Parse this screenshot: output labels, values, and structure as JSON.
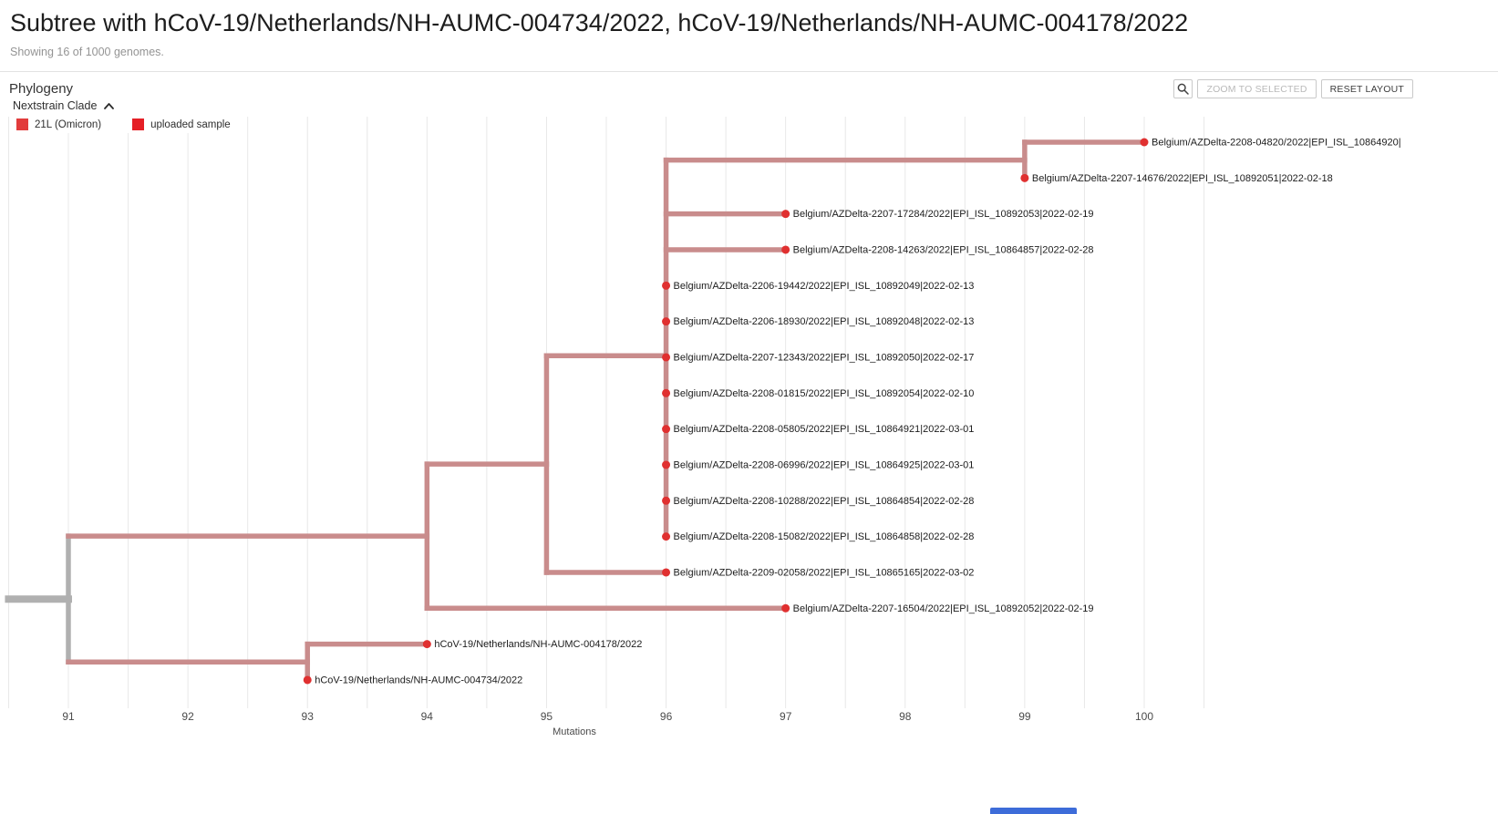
{
  "header": {
    "title": "Subtree with hCoV-19/Netherlands/NH-AUMC-004734/2022, hCoV-19/Netherlands/NH-AUMC-004178/2022",
    "subtitle": "Showing 16 of 1000 genomes."
  },
  "panel": {
    "title": "Phylogeny",
    "zoom_to_selected_label": "ZOOM TO SELECTED",
    "reset_layout_label": "RESET LAYOUT"
  },
  "legend": {
    "title": "Nextstrain Clade",
    "items": [
      {
        "label": "21L (Omicron)",
        "color": "#e23c3c"
      },
      {
        "label": "uploaded sample",
        "color": "#e51f26"
      }
    ]
  },
  "chart_data": {
    "type": "phylogenetic-tree",
    "xlabel": "Mutations",
    "x_ticks": [
      91,
      92,
      93,
      94,
      95,
      96,
      97,
      98,
      99,
      100
    ],
    "x_grid_range": [
      90.5,
      100.5
    ],
    "x_gridline_step": 0.5,
    "grid_color": "#e8e8e8",
    "branch_color": "#c98c8c",
    "root_color": "#b0b0b0",
    "tip_dot_color": "#e03030",
    "tips": [
      {
        "name": "Belgium/AZDelta-2208-04820/2022|EPI_ISL_10864920|",
        "mutations": 100
      },
      {
        "name": "Belgium/AZDelta-2207-14676/2022|EPI_ISL_10892051|2022-02-18",
        "mutations": 99
      },
      {
        "name": "Belgium/AZDelta-2207-17284/2022|EPI_ISL_10892053|2022-02-19",
        "mutations": 97
      },
      {
        "name": "Belgium/AZDelta-2208-14263/2022|EPI_ISL_10864857|2022-02-28",
        "mutations": 97
      },
      {
        "name": "Belgium/AZDelta-2206-19442/2022|EPI_ISL_10892049|2022-02-13",
        "mutations": 96
      },
      {
        "name": "Belgium/AZDelta-2206-18930/2022|EPI_ISL_10892048|2022-02-13",
        "mutations": 96
      },
      {
        "name": "Belgium/AZDelta-2207-12343/2022|EPI_ISL_10892050|2022-02-17",
        "mutations": 96
      },
      {
        "name": "Belgium/AZDelta-2208-01815/2022|EPI_ISL_10892054|2022-02-10",
        "mutations": 96
      },
      {
        "name": "Belgium/AZDelta-2208-05805/2022|EPI_ISL_10864921|2022-03-01",
        "mutations": 96
      },
      {
        "name": "Belgium/AZDelta-2208-06996/2022|EPI_ISL_10864925|2022-03-01",
        "mutations": 96
      },
      {
        "name": "Belgium/AZDelta-2208-10288/2022|EPI_ISL_10864854|2022-02-28",
        "mutations": 96
      },
      {
        "name": "Belgium/AZDelta-2208-15082/2022|EPI_ISL_10864858|2022-02-28",
        "mutations": 96
      },
      {
        "name": "Belgium/AZDelta-2209-02058/2022|EPI_ISL_10865165|2022-03-02",
        "mutations": 96
      },
      {
        "name": "Belgium/AZDelta-2207-16504/2022|EPI_ISL_10892052|2022-02-19",
        "mutations": 97
      },
      {
        "name": "hCoV-19/Netherlands/NH-AUMC-004178/2022",
        "mutations": 94
      },
      {
        "name": "hCoV-19/Netherlands/NH-AUMC-004734/2022",
        "mutations": 93
      }
    ],
    "tree": {
      "x": 91,
      "color": "#b0b0b0",
      "stub_from": 90.5,
      "children": [
        {
          "x": 94,
          "children": [
            {
              "x": 95,
              "children": [
                {
                  "x": 96,
                  "children": [
                    {
                      "x": 99,
                      "children": [
                        {
                          "tip": 0,
                          "x": 100
                        },
                        {
                          "tip": 1,
                          "x": 99
                        }
                      ]
                    },
                    {
                      "tip": 2,
                      "x": 97
                    },
                    {
                      "tip": 3,
                      "x": 97
                    },
                    {
                      "tip": 4,
                      "x": 96
                    },
                    {
                      "tip": 5,
                      "x": 96
                    },
                    {
                      "tip": 6,
                      "x": 96
                    },
                    {
                      "tip": 7,
                      "x": 96
                    },
                    {
                      "tip": 8,
                      "x": 96
                    },
                    {
                      "tip": 9,
                      "x": 96
                    },
                    {
                      "tip": 10,
                      "x": 96
                    },
                    {
                      "tip": 11,
                      "x": 96
                    }
                  ]
                },
                {
                  "tip": 12,
                  "x": 96
                }
              ]
            },
            {
              "tip": 13,
              "x": 97
            }
          ]
        },
        {
          "x": 93,
          "children": [
            {
              "tip": 14,
              "x": 94
            },
            {
              "tip": 15,
              "x": 93
            }
          ]
        }
      ]
    }
  }
}
